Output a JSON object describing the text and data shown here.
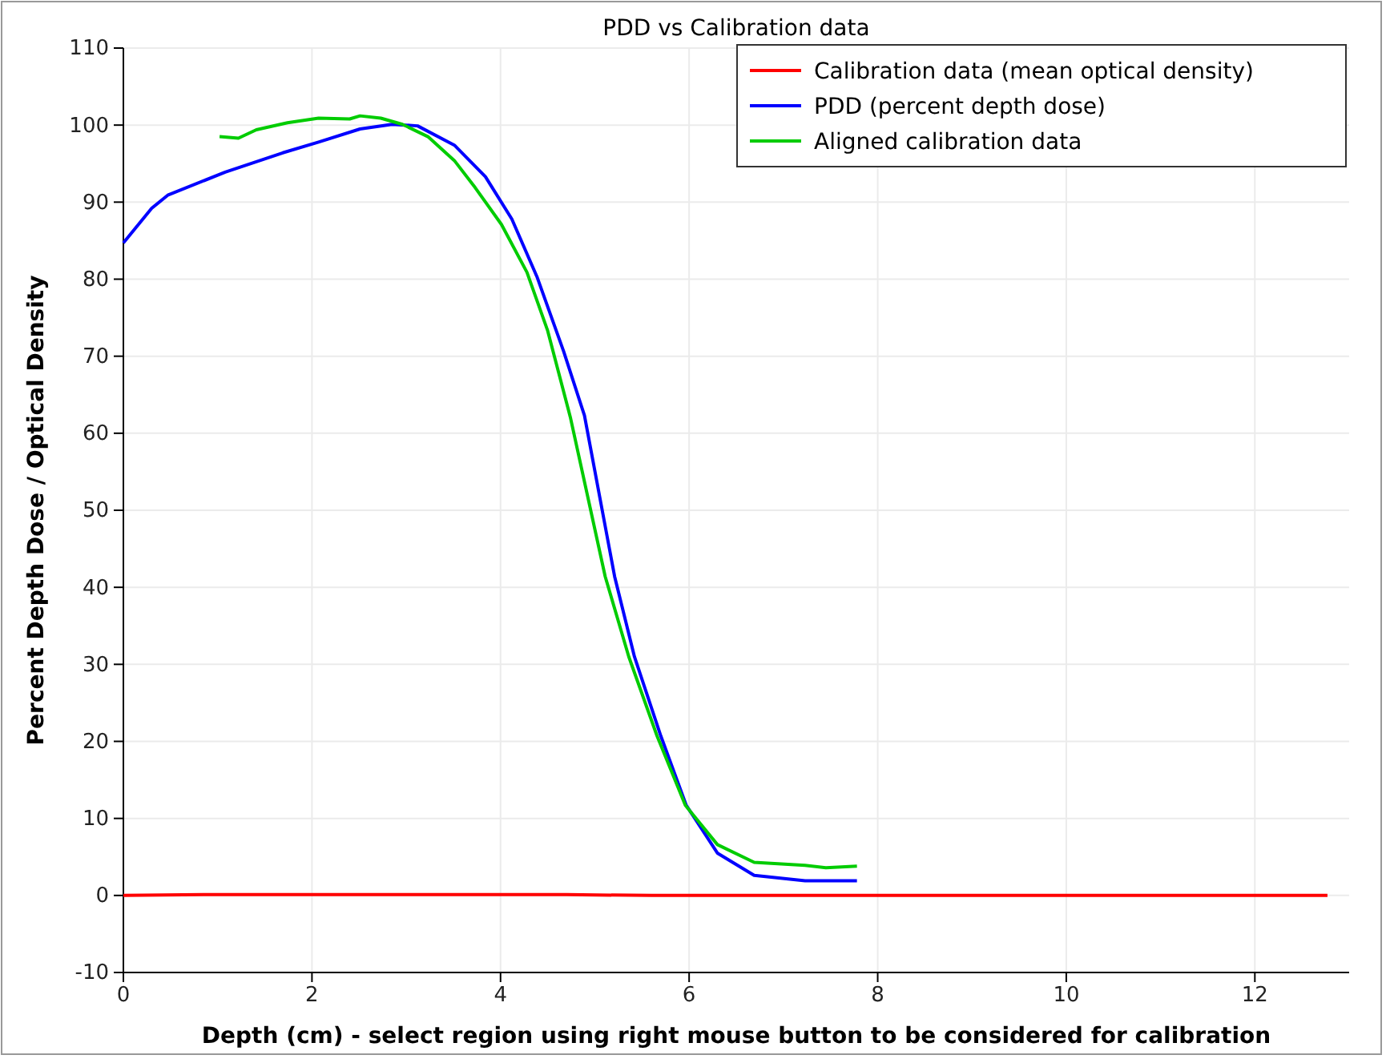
{
  "chart_data": {
    "type": "line",
    "title": "PDD vs Calibration data",
    "xlabel": "Depth (cm) - select region using right mouse button to be considered for calibration",
    "ylabel": "Percent Depth Dose / Optical Density",
    "xlim": [
      0,
      13
    ],
    "xticks": [
      0,
      2,
      4,
      6,
      8,
      10,
      12
    ],
    "ylim": [
      -10,
      110
    ],
    "yticks": [
      -10,
      0,
      10,
      20,
      30,
      40,
      50,
      60,
      70,
      80,
      90,
      100,
      110
    ],
    "grid": true,
    "legend": "top right",
    "line_style": "solid",
    "marker": "none",
    "series": [
      {
        "name": "Calibration data (mean optical density)",
        "color": "#ff0000",
        "x": [
          0,
          0.85,
          4.7,
          5.6,
          12.77
        ],
        "values": [
          0,
          0.1,
          0.1,
          0,
          0
        ]
      },
      {
        "name": "PDD (percent depth dose)",
        "color": "#0000ff",
        "x": [
          0,
          0.3,
          0.47,
          1.08,
          1.69,
          2.07,
          2.51,
          2.85,
          3.12,
          3.51,
          3.84,
          4.12,
          4.39,
          4.67,
          4.89,
          5.21,
          5.42,
          5.7,
          5.97,
          6.3,
          6.69,
          7.23,
          7.78
        ],
        "values": [
          84.7,
          89.2,
          90.9,
          93.9,
          96.4,
          97.8,
          99.5,
          100.1,
          99.9,
          97.4,
          93.3,
          87.8,
          80.2,
          70.6,
          62.3,
          41.4,
          31,
          20.7,
          11.7,
          5.5,
          2.6,
          1.9,
          1.9
        ]
      },
      {
        "name": "Aligned calibration data",
        "color": "#00cc00",
        "x": [
          1.02,
          1.22,
          1.41,
          1.74,
          2.07,
          2.4,
          2.51,
          2.73,
          2.96,
          3.23,
          3.51,
          3.73,
          4.01,
          4.28,
          4.5,
          4.74,
          5.11,
          5.36,
          5.66,
          5.96,
          6.3,
          6.69,
          7.23,
          7.45,
          7.78
        ],
        "values": [
          98.5,
          98.3,
          99.4,
          100.3,
          100.9,
          100.8,
          101.2,
          100.9,
          100.1,
          98.5,
          95.4,
          91.9,
          87.1,
          80.9,
          73.3,
          62.1,
          41.4,
          31,
          20.7,
          11.7,
          6.6,
          4.3,
          3.9,
          3.6,
          3.8
        ]
      }
    ]
  }
}
